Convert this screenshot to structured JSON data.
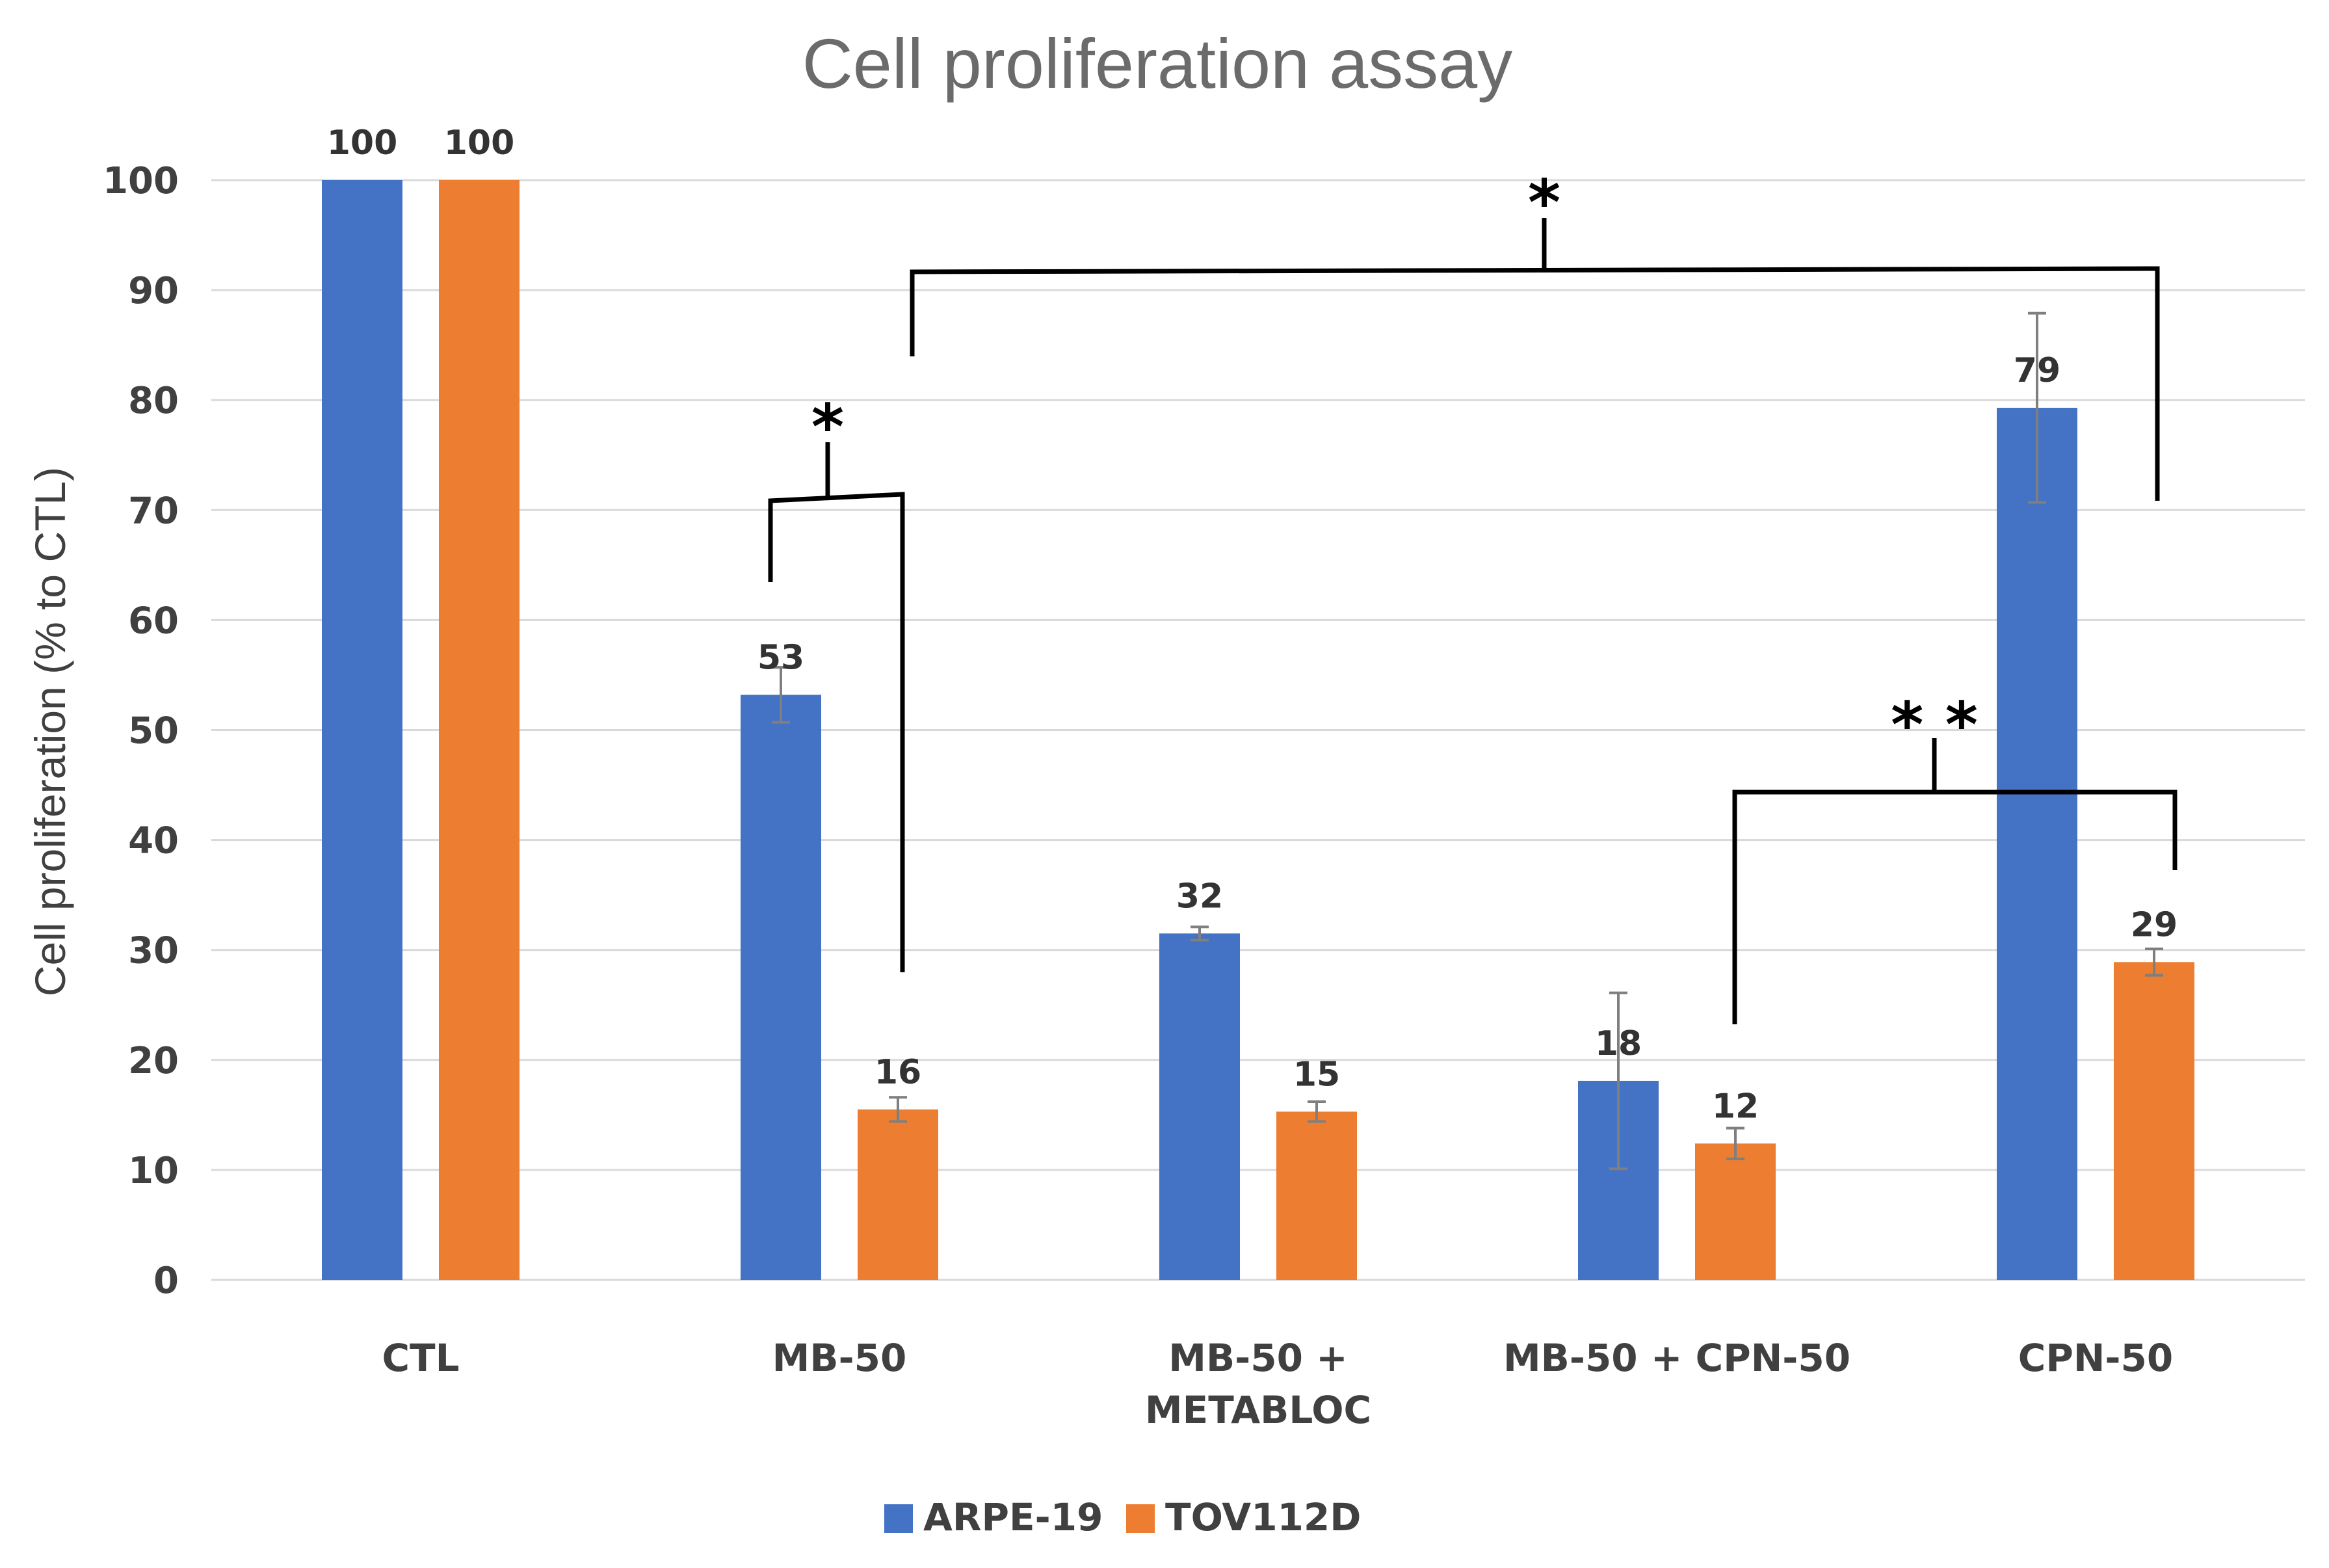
{
  "chart_data": {
    "type": "bar",
    "title": "Cell proliferation assay",
    "ylabel": "Cell proliferation (% to CTL)",
    "xlabel": "",
    "ylim": [
      0,
      100
    ],
    "yticks": [
      "0",
      "10",
      "20",
      "30",
      "40",
      "50",
      "60",
      "70",
      "80",
      "90",
      "100"
    ],
    "grid": true,
    "legend_position": "bottom",
    "categories": [
      [
        "CTL"
      ],
      [
        "MB-50"
      ],
      [
        "MB-50 +",
        "METABLOC"
      ],
      [
        "MB-50 + CPN-50"
      ],
      [
        "CPN-50"
      ]
    ],
    "series": [
      {
        "name": "ARPE-19",
        "color": "#4472c4",
        "values": [
          100,
          53.2,
          31.5,
          18.1,
          79.3
        ],
        "labels": [
          "100",
          "53",
          "32",
          "18",
          "79"
        ],
        "errors": [
          0,
          2.5,
          0.6,
          8.0,
          8.6
        ]
      },
      {
        "name": "TOV112D",
        "color": "#ed7d31",
        "values": [
          100,
          15.5,
          15.3,
          12.4,
          28.9
        ],
        "labels": [
          "100",
          "16",
          "15",
          "12",
          "29"
        ],
        "errors": [
          0,
          1.1,
          0.9,
          1.4,
          1.2
        ]
      }
    ],
    "annotations": [
      {
        "text": "*",
        "between": "ARPE-19 MB-50 vs TOV112D MB-50"
      },
      {
        "text": "*",
        "between": "MB-50 vs CPN-50"
      },
      {
        "text": "* *",
        "between": "MB-50 + CPN-50 vs CPN-50"
      }
    ]
  }
}
